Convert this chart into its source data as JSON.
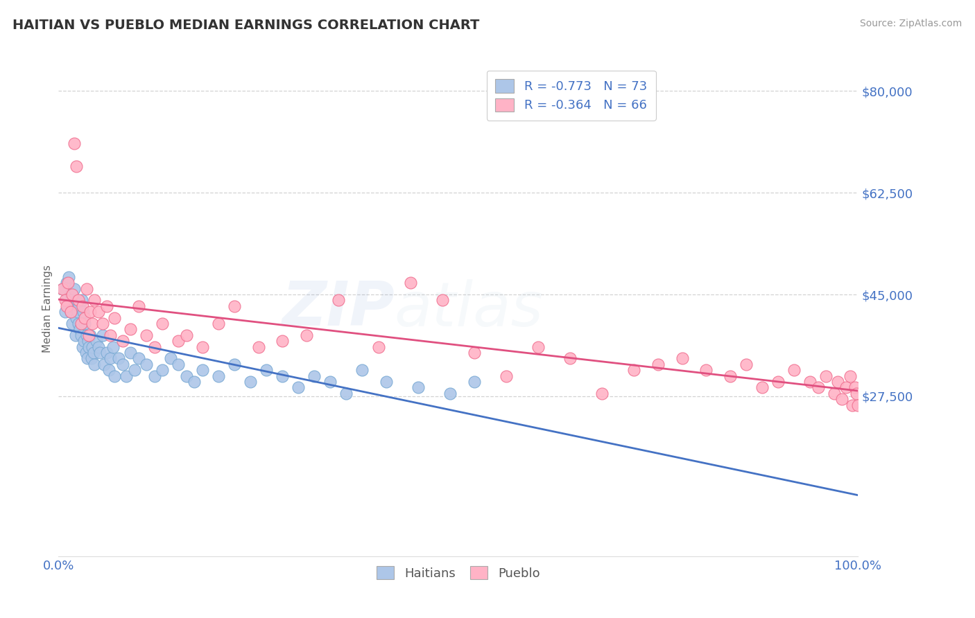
{
  "title": "HAITIAN VS PUEBLO MEDIAN EARNINGS CORRELATION CHART",
  "source": "Source: ZipAtlas.com",
  "ylabel": "Median Earnings",
  "xlim": [
    0,
    1.0
  ],
  "ylim": [
    0,
    85000
  ],
  "yticks": [
    27500,
    45000,
    62500,
    80000
  ],
  "ytick_labels": [
    "$27,500",
    "$45,000",
    "$62,500",
    "$80,000"
  ],
  "xticks": [
    0.0,
    1.0
  ],
  "xtick_labels": [
    "0.0%",
    "100.0%"
  ],
  "background_color": "#ffffff",
  "grid_color": "#c8c8c8",
  "title_color": "#333333",
  "source_color": "#999999",
  "watermark_zip": "ZIP",
  "watermark_atlas": "atlas",
  "series": [
    {
      "name": "Haitians",
      "color": "#adc6e8",
      "edge_color": "#7aaad4",
      "R": -0.773,
      "N": 73,
      "line_color": "#4472c4",
      "x": [
        0.005,
        0.008,
        0.01,
        0.01,
        0.012,
        0.013,
        0.015,
        0.015,
        0.016,
        0.017,
        0.018,
        0.02,
        0.021,
        0.022,
        0.023,
        0.024,
        0.025,
        0.026,
        0.027,
        0.028,
        0.029,
        0.03,
        0.031,
        0.032,
        0.033,
        0.034,
        0.035,
        0.036,
        0.037,
        0.038,
        0.04,
        0.041,
        0.042,
        0.044,
        0.045,
        0.047,
        0.05,
        0.052,
        0.055,
        0.057,
        0.06,
        0.063,
        0.065,
        0.068,
        0.07,
        0.075,
        0.08,
        0.085,
        0.09,
        0.095,
        0.1,
        0.11,
        0.12,
        0.13,
        0.14,
        0.15,
        0.16,
        0.17,
        0.18,
        0.2,
        0.22,
        0.24,
        0.26,
        0.28,
        0.3,
        0.32,
        0.34,
        0.36,
        0.38,
        0.41,
        0.45,
        0.49,
        0.52
      ],
      "y": [
        46000,
        42000,
        47000,
        44000,
        43000,
        48000,
        45000,
        42000,
        44000,
        40000,
        43000,
        46000,
        38000,
        41000,
        44000,
        42000,
        40000,
        43000,
        39000,
        38000,
        44000,
        36000,
        42000,
        37000,
        40000,
        35000,
        38000,
        34000,
        37000,
        36000,
        38000,
        34000,
        36000,
        35000,
        33000,
        37000,
        36000,
        35000,
        38000,
        33000,
        35000,
        32000,
        34000,
        36000,
        31000,
        34000,
        33000,
        31000,
        35000,
        32000,
        34000,
        33000,
        31000,
        32000,
        34000,
        33000,
        31000,
        30000,
        32000,
        31000,
        33000,
        30000,
        32000,
        31000,
        29000,
        31000,
        30000,
        28000,
        32000,
        30000,
        29000,
        28000,
        30000
      ]
    },
    {
      "name": "Pueblo",
      "color": "#ffb3c6",
      "edge_color": "#f07090",
      "R": -0.364,
      "N": 66,
      "line_color": "#e05080",
      "x": [
        0.005,
        0.008,
        0.01,
        0.012,
        0.015,
        0.017,
        0.02,
        0.022,
        0.025,
        0.028,
        0.03,
        0.033,
        0.035,
        0.038,
        0.04,
        0.042,
        0.045,
        0.05,
        0.055,
        0.06,
        0.065,
        0.07,
        0.08,
        0.09,
        0.1,
        0.11,
        0.12,
        0.13,
        0.15,
        0.16,
        0.18,
        0.2,
        0.22,
        0.25,
        0.28,
        0.31,
        0.35,
        0.4,
        0.44,
        0.48,
        0.52,
        0.56,
        0.6,
        0.64,
        0.68,
        0.72,
        0.75,
        0.78,
        0.81,
        0.84,
        0.86,
        0.88,
        0.9,
        0.92,
        0.94,
        0.95,
        0.96,
        0.97,
        0.975,
        0.98,
        0.985,
        0.99,
        0.993,
        0.996,
        0.998,
        1.0
      ],
      "y": [
        46000,
        44000,
        43000,
        47000,
        42000,
        45000,
        71000,
        67000,
        44000,
        40000,
        43000,
        41000,
        46000,
        38000,
        42000,
        40000,
        44000,
        42000,
        40000,
        43000,
        38000,
        41000,
        37000,
        39000,
        43000,
        38000,
        36000,
        40000,
        37000,
        38000,
        36000,
        40000,
        43000,
        36000,
        37000,
        38000,
        44000,
        36000,
        47000,
        44000,
        35000,
        31000,
        36000,
        34000,
        28000,
        32000,
        33000,
        34000,
        32000,
        31000,
        33000,
        29000,
        30000,
        32000,
        30000,
        29000,
        31000,
        28000,
        30000,
        27000,
        29000,
        31000,
        26000,
        29000,
        28000,
        26000
      ]
    }
  ]
}
